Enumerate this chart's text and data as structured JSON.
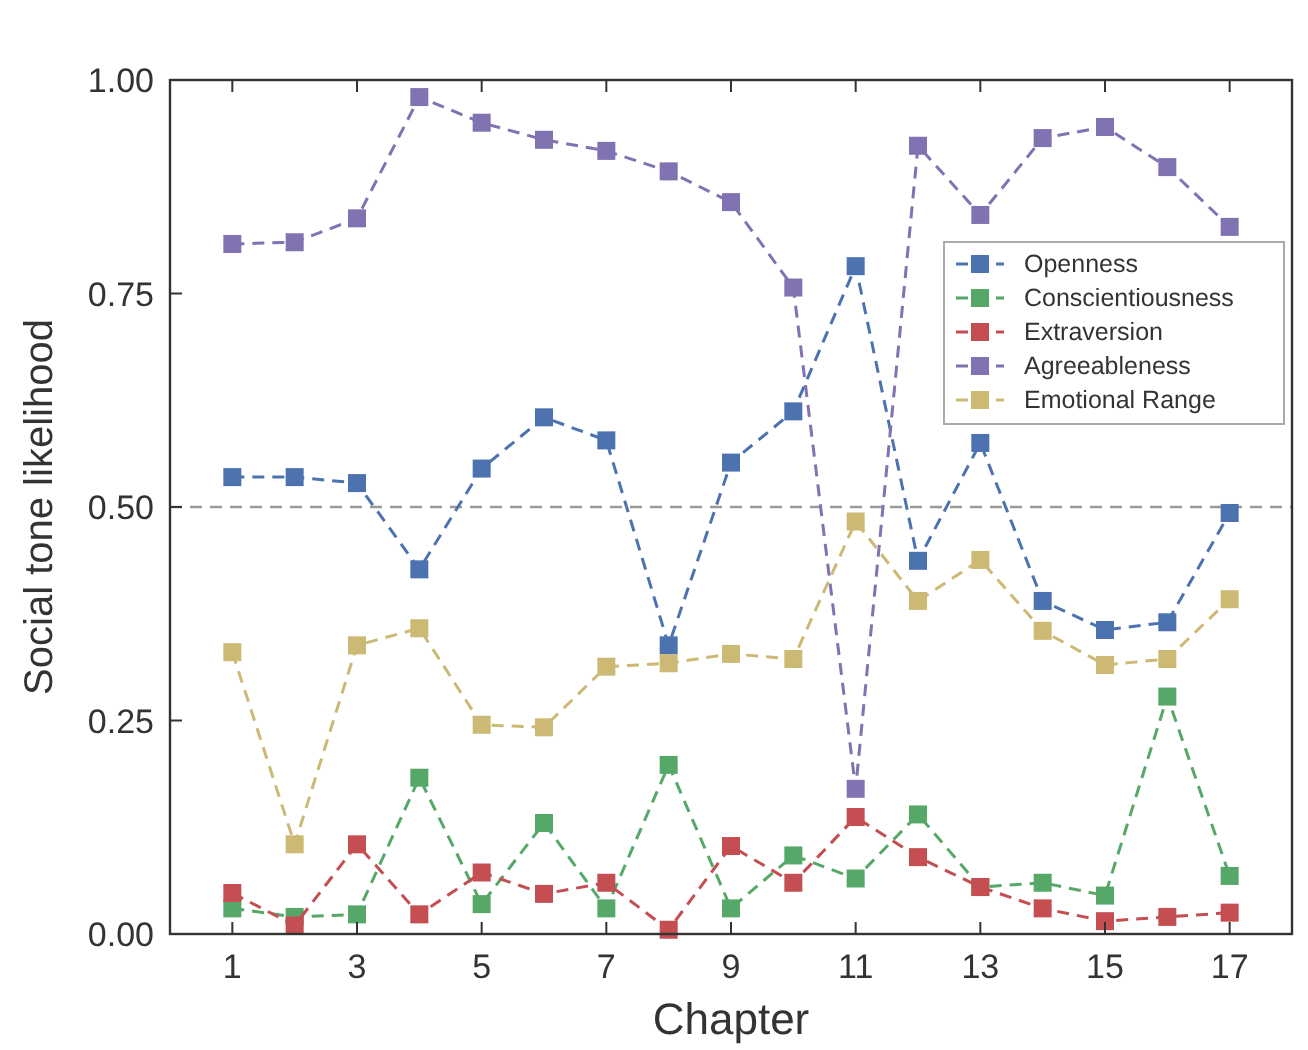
{
  "chart_data": {
    "type": "line",
    "xlabel": "Chapter",
    "ylabel": "Social tone likelihood",
    "x": [
      1,
      2,
      3,
      4,
      5,
      6,
      7,
      8,
      9,
      10,
      11,
      12,
      13,
      14,
      15,
      16,
      17
    ],
    "series": [
      {
        "name": "Openness",
        "color": "#4c72b0",
        "values": [
          0.535,
          0.535,
          0.528,
          0.427,
          0.545,
          0.605,
          0.578,
          0.338,
          0.552,
          0.612,
          0.782,
          0.437,
          0.575,
          0.39,
          0.356,
          0.365,
          0.493
        ]
      },
      {
        "name": "Conscientiousness",
        "color": "#55a868",
        "values": [
          0.03,
          0.02,
          0.023,
          0.183,
          0.035,
          0.13,
          0.03,
          0.198,
          0.03,
          0.092,
          0.065,
          0.14,
          0.055,
          0.06,
          0.045,
          0.278,
          0.068
        ]
      },
      {
        "name": "Extraversion",
        "color": "#c44e52",
        "values": [
          0.048,
          0.01,
          0.105,
          0.023,
          0.072,
          0.047,
          0.06,
          0.005,
          0.103,
          0.06,
          0.137,
          0.09,
          0.055,
          0.03,
          0.015,
          0.02,
          0.025
        ]
      },
      {
        "name": "Agreeableness",
        "color": "#8172b2",
        "values": [
          0.808,
          0.81,
          0.838,
          0.98,
          0.95,
          0.93,
          0.917,
          0.893,
          0.857,
          0.757,
          0.17,
          0.923,
          0.842,
          0.932,
          0.945,
          0.898,
          0.828
        ]
      },
      {
        "name": "Emotional Range",
        "color": "#ccb974",
        "values": [
          0.33,
          0.105,
          0.338,
          0.358,
          0.245,
          0.242,
          0.313,
          0.317,
          0.328,
          0.322,
          0.483,
          0.39,
          0.438,
          0.355,
          0.315,
          0.322,
          0.392
        ]
      }
    ],
    "xlim": [
      0,
      18
    ],
    "ylim": [
      0,
      1
    ],
    "xticks": [
      1,
      3,
      5,
      7,
      9,
      11,
      13,
      15,
      17
    ],
    "yticks": [
      {
        "value": 0,
        "label": "0.00"
      },
      {
        "value": 0.25,
        "label": "0.25"
      },
      {
        "value": 0.5,
        "label": "0.50"
      },
      {
        "value": 0.75,
        "label": "0.75"
      },
      {
        "value": 1,
        "label": "1.00"
      }
    ],
    "ref_lines": [
      {
        "axis": "y",
        "value": 0.5,
        "color": "#999999",
        "line_style": "dashed"
      }
    ],
    "legend": "top right",
    "marker": "square",
    "line_style": "dashed",
    "grid": false
  }
}
